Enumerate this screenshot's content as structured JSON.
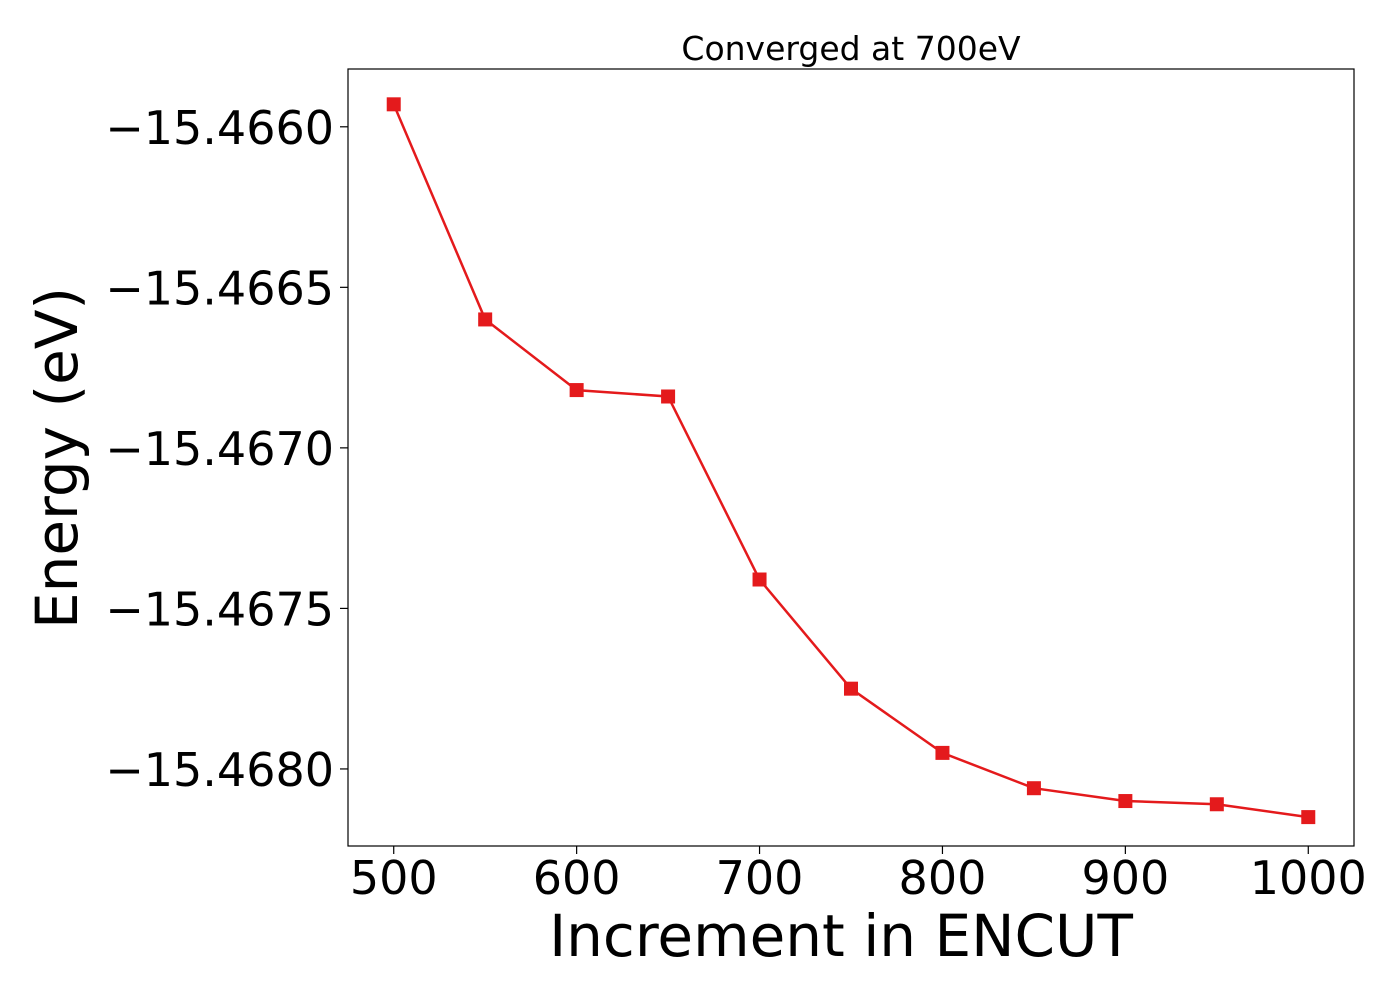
{
  "chart_data": {
    "type": "line",
    "title": "Converged at 700eV",
    "xlabel": "Increment in ENCUT",
    "ylabel": "Energy (eV)",
    "xlim": [
      475,
      1025
    ],
    "ylim": [
      -15.46824,
      -15.46582
    ],
    "x_ticks": [
      500,
      600,
      700,
      800,
      900,
      1000
    ],
    "x_tick_labels": [
      "500",
      "600",
      "700",
      "800",
      "900",
      "1000"
    ],
    "y_ticks": [
      -15.466,
      -15.4665,
      -15.467,
      -15.4675,
      -15.468
    ],
    "y_tick_labels": [
      "−15.4660",
      "−15.4665",
      "−15.4670",
      "−15.4675",
      "−15.4680"
    ],
    "grid": false,
    "series": [
      {
        "color": "#e41a1c",
        "marker": "square",
        "x": [
          500,
          550,
          600,
          650,
          700,
          750,
          800,
          850,
          900,
          950,
          1000
        ],
        "y": [
          -15.46593,
          -15.4666,
          -15.46682,
          -15.46684,
          -15.46741,
          -15.46775,
          -15.46795,
          -15.46806,
          -15.4681,
          -15.46811,
          -15.46815
        ]
      }
    ]
  }
}
